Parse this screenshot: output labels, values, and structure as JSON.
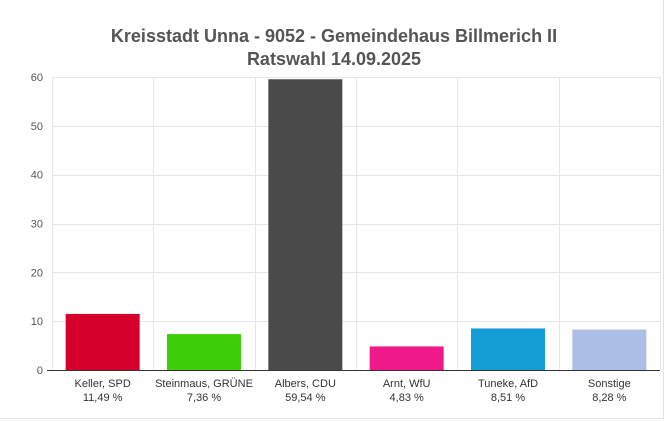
{
  "chart_data": {
    "type": "bar",
    "title": "Kreisstadt Unna - 9052 - Gemeindehaus Billmerich II",
    "subtitle": "Ratswahl 14.09.2025",
    "categories": [
      "Keller, SPD",
      "Steinmaus, GRÜNE",
      "Albers, CDU",
      "Arnt, WfU",
      "Tuneke, AfD",
      "Sonstige"
    ],
    "values": [
      11.49,
      7.36,
      59.54,
      4.83,
      8.51,
      8.28
    ],
    "value_labels": [
      "11,49 %",
      "7,36 %",
      "59,54 %",
      "4,83 %",
      "8,51 %",
      "8,28 %"
    ],
    "colors": [
      "#d6002c",
      "#3ccf0a",
      "#4a4a4a",
      "#f0198c",
      "#139dd4",
      "#acbde6"
    ],
    "ylim": [
      0,
      60
    ],
    "yticks": [
      0,
      10,
      20,
      30,
      40,
      50,
      60
    ],
    "xlabel": "",
    "ylabel": "",
    "grid": true,
    "legend": false
  }
}
